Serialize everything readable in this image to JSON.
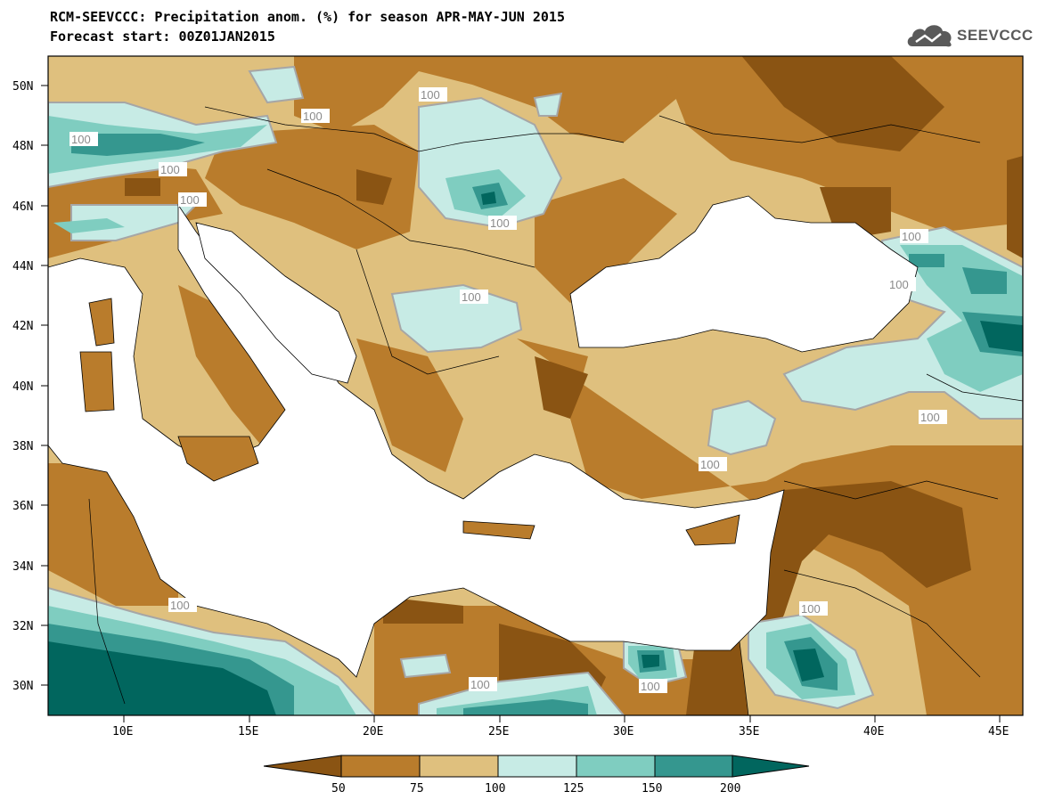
{
  "header": {
    "title_line1": "RCM-SEEVCCC: Precipitation anom. (%) for season APR-MAY-JUN 2015",
    "title_line2": "Forecast start: 00Z01JAN2015",
    "logo_text": "SEEVCCC"
  },
  "map": {
    "lat_ticks": [
      "50N",
      "48N",
      "46N",
      "44N",
      "42N",
      "40N",
      "38N",
      "36N",
      "34N",
      "32N",
      "30N"
    ],
    "lon_ticks": [
      "10E",
      "15E",
      "20E",
      "25E",
      "30E",
      "35E",
      "40E",
      "45E"
    ],
    "contour_labels": [
      "100",
      "100",
      "100",
      "100",
      "100",
      "100",
      "100",
      "100",
      "100",
      "100",
      "100",
      "100",
      "100",
      "100",
      "100"
    ],
    "colors": {
      "below_50": "#8a5413",
      "50_75": "#b97c2c",
      "75_100": "#dfc07e",
      "100_125": "#c7ebe5",
      "125_150": "#7fcdc0",
      "150_200": "#35978f",
      "above_200": "#01665e",
      "sea": "#ffffff",
      "contour": "#a6a6a6"
    }
  },
  "colorbar": {
    "labels": [
      "50",
      "75",
      "100",
      "125",
      "150",
      "200"
    ],
    "colors": [
      "#8a5413",
      "#b97c2c",
      "#dfc07e",
      "#c7ebe5",
      "#7fcdc0",
      "#35978f",
      "#01665e"
    ]
  }
}
